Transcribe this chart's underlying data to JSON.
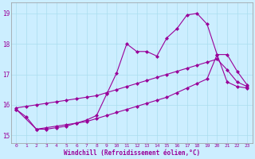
{
  "xlabel": "Windchill (Refroidissement éolien,°C)",
  "bg_color": "#cceeff",
  "line_color": "#990099",
  "ylim": [
    14.75,
    19.35
  ],
  "xlim": [
    -0.5,
    23.5
  ],
  "yticks": [
    15,
    16,
    17,
    18,
    19
  ],
  "xticks": [
    0,
    1,
    2,
    3,
    4,
    5,
    6,
    7,
    8,
    9,
    10,
    11,
    12,
    13,
    14,
    15,
    16,
    17,
    18,
    19,
    20,
    21,
    22,
    23
  ],
  "line1_x": [
    0,
    1,
    2,
    3,
    4,
    5,
    6,
    7,
    8,
    9,
    10,
    11,
    12,
    13,
    14,
    15,
    16,
    17,
    18,
    19,
    20,
    21,
    22,
    23
  ],
  "line1_y": [
    15.9,
    15.95,
    16.0,
    16.05,
    16.1,
    16.15,
    16.2,
    16.25,
    16.3,
    16.4,
    16.5,
    16.6,
    16.7,
    16.8,
    16.9,
    17.0,
    17.1,
    17.2,
    17.3,
    17.4,
    17.5,
    17.15,
    16.75,
    16.6
  ],
  "line2_x": [
    0,
    1,
    2,
    3,
    4,
    5,
    6,
    7,
    8,
    9,
    10,
    11,
    12,
    13,
    14,
    15,
    16,
    17,
    18,
    19,
    20,
    21,
    22,
    23
  ],
  "line2_y": [
    15.85,
    15.6,
    15.2,
    15.25,
    15.3,
    15.35,
    15.4,
    15.45,
    15.55,
    15.65,
    15.75,
    15.85,
    15.95,
    16.05,
    16.15,
    16.25,
    16.4,
    16.55,
    16.7,
    16.85,
    17.65,
    16.75,
    16.6,
    16.55
  ],
  "line3_x": [
    0,
    2,
    3,
    4,
    5,
    6,
    7,
    8,
    9,
    10,
    11,
    12,
    13,
    14,
    15,
    16,
    17,
    18,
    19,
    20,
    21,
    22,
    23
  ],
  "line3_y": [
    15.85,
    15.2,
    15.2,
    15.25,
    15.3,
    15.4,
    15.5,
    15.65,
    16.35,
    17.05,
    18.0,
    17.75,
    17.75,
    17.6,
    18.2,
    18.5,
    18.95,
    19.0,
    18.65,
    17.65,
    17.65,
    17.1,
    16.65
  ]
}
